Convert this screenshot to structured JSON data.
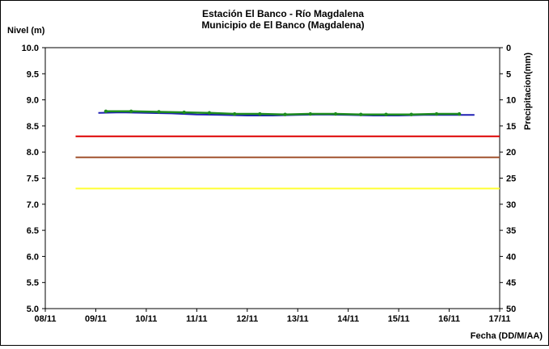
{
  "chart_data": {
    "type": "line",
    "title": "Estación El Banco - Río Magdalena",
    "subtitle": "Municipio de El Banco (Magdalena)",
    "ylabel": "Nivel (m)",
    "y2label": "Precipitacion(mm)",
    "xlabel": "Fecha (DD/M/AA)",
    "ylim": [
      5.0,
      10.0
    ],
    "y2lim": [
      0,
      50
    ],
    "y2_inverted": true,
    "y_ticks": [
      "5.0",
      "5.5",
      "6.0",
      "6.5",
      "7.0",
      "7.5",
      "8.0",
      "8.5",
      "9.0",
      "9.5",
      "10.0"
    ],
    "y2_ticks": [
      "50",
      "45",
      "40",
      "35",
      "30",
      "25",
      "20",
      "15",
      "10",
      "5",
      "0"
    ],
    "x_ticks": [
      "08/11",
      "09/11",
      "10/11",
      "11/11",
      "12/11",
      "13/11",
      "14/11",
      "15/11",
      "16/11",
      "17/11"
    ],
    "x_range_days": [
      8,
      17
    ],
    "grid": false,
    "series": [
      {
        "color": "#1f1fb4",
        "x": [
          9.05,
          9.5,
          10.0,
          10.5,
          11.0,
          11.5,
          12.0,
          12.5,
          13.0,
          13.5,
          14.0,
          14.5,
          15.0,
          15.5,
          16.0,
          16.5
        ],
        "values": [
          8.75,
          8.76,
          8.75,
          8.74,
          8.72,
          8.71,
          8.7,
          8.7,
          8.71,
          8.72,
          8.71,
          8.7,
          8.7,
          8.71,
          8.71,
          8.71
        ]
      },
      {
        "color": "#1e8c1e",
        "marker": "dot",
        "x": [
          9.2,
          9.7,
          10.25,
          10.75,
          11.25,
          11.75,
          12.25,
          12.75,
          13.25,
          13.75,
          14.25,
          14.75,
          15.25,
          15.75,
          16.2
        ],
        "values": [
          8.78,
          8.78,
          8.77,
          8.76,
          8.75,
          8.73,
          8.73,
          8.72,
          8.73,
          8.73,
          8.72,
          8.72,
          8.72,
          8.73,
          8.73
        ]
      },
      {
        "color": "#dd0000",
        "x": [
          8.6,
          17.0
        ],
        "values": [
          8.3,
          8.3
        ]
      },
      {
        "color": "#a0522d",
        "x": [
          8.6,
          17.0
        ],
        "values": [
          7.9,
          7.9
        ]
      },
      {
        "color": "#ffff33",
        "x": [
          8.6,
          17.0
        ],
        "values": [
          7.3,
          7.3
        ]
      }
    ]
  }
}
